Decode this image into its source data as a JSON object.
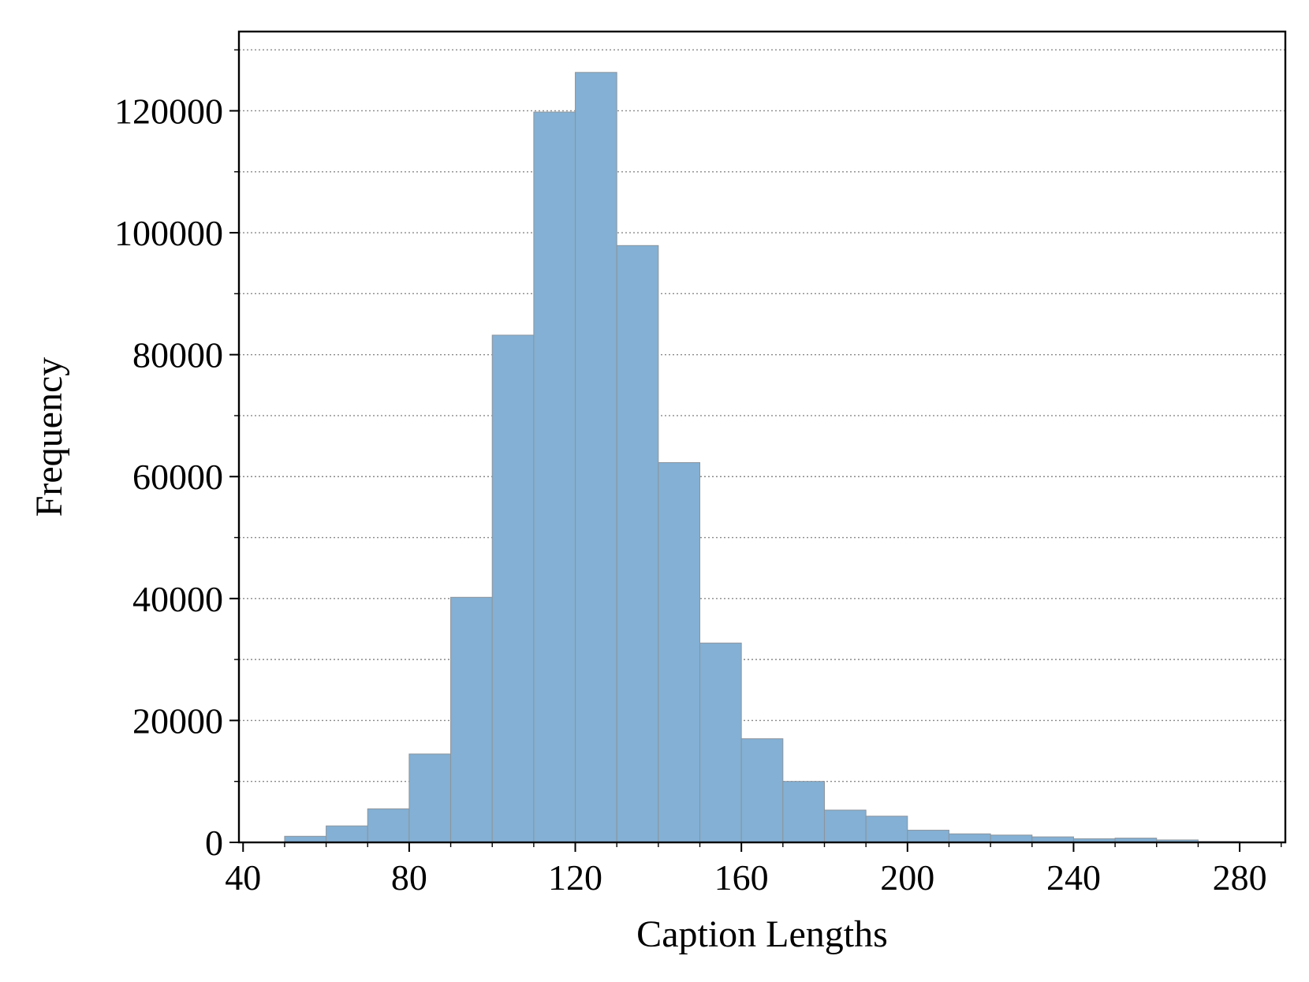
{
  "chart_data": {
    "type": "bar",
    "subtype": "histogram",
    "title": "",
    "xlabel": "Caption Lengths",
    "ylabel": "Frequency",
    "bin_width": 10,
    "bins": [
      {
        "x0": 50,
        "x1": 60,
        "value": 1000
      },
      {
        "x0": 60,
        "x1": 70,
        "value": 2700
      },
      {
        "x0": 70,
        "x1": 80,
        "value": 5500
      },
      {
        "x0": 80,
        "x1": 90,
        "value": 14500
      },
      {
        "x0": 90,
        "x1": 100,
        "value": 40200
      },
      {
        "x0": 100,
        "x1": 110,
        "value": 83200
      },
      {
        "x0": 110,
        "x1": 120,
        "value": 119800
      },
      {
        "x0": 120,
        "x1": 130,
        "value": 126300
      },
      {
        "x0": 130,
        "x1": 140,
        "value": 97900
      },
      {
        "x0": 140,
        "x1": 150,
        "value": 62300
      },
      {
        "x0": 150,
        "x1": 160,
        "value": 32700
      },
      {
        "x0": 160,
        "x1": 170,
        "value": 17000
      },
      {
        "x0": 170,
        "x1": 180,
        "value": 10000
      },
      {
        "x0": 180,
        "x1": 190,
        "value": 5300
      },
      {
        "x0": 190,
        "x1": 200,
        "value": 4300
      },
      {
        "x0": 200,
        "x1": 210,
        "value": 2000
      },
      {
        "x0": 210,
        "x1": 220,
        "value": 1400
      },
      {
        "x0": 220,
        "x1": 230,
        "value": 1200
      },
      {
        "x0": 230,
        "x1": 240,
        "value": 900
      },
      {
        "x0": 240,
        "x1": 250,
        "value": 600
      },
      {
        "x0": 250,
        "x1": 260,
        "value": 700
      },
      {
        "x0": 260,
        "x1": 270,
        "value": 400
      },
      {
        "x0": 270,
        "x1": 280,
        "value": 150
      }
    ],
    "xlim": [
      39,
      291
    ],
    "ylim": [
      0,
      133000
    ],
    "xticks": [
      40,
      80,
      120,
      160,
      200,
      240,
      280
    ],
    "xtick_labels": [
      "40",
      "80",
      "120",
      "160",
      "200",
      "240",
      "280"
    ],
    "yticks": [
      0,
      20000,
      40000,
      60000,
      80000,
      100000,
      120000
    ],
    "ytick_labels": [
      "0",
      "20000",
      "40000",
      "60000",
      "80000",
      "100000",
      "120000"
    ],
    "y_minor_step": 10000,
    "x_minor_step": 10,
    "grid": {
      "axis": "y",
      "style": "dotted",
      "on": true
    },
    "colors": {
      "bar_fill": "#83b0d4",
      "bar_edge": "#8c949c",
      "grid": "#8a8a8a",
      "axis": "#000000"
    }
  }
}
